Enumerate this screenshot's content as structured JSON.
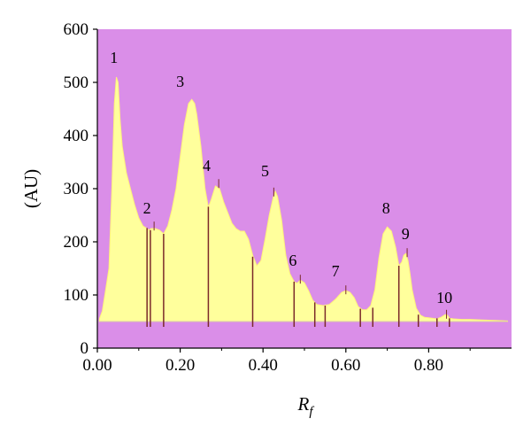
{
  "chart_data": {
    "type": "area",
    "title": "",
    "xlabel": "R",
    "xlabel_subscript": "f",
    "ylabel": "(AU)",
    "xlim": [
      0.0,
      1.0
    ],
    "ylim": [
      0,
      600
    ],
    "baseline": 50,
    "x_ticks": [
      0.0,
      0.2,
      0.4,
      0.6,
      0.8
    ],
    "x_tick_labels": [
      "0.00",
      "0.20",
      "0.40",
      "0.60",
      "0.80"
    ],
    "y_ticks": [
      0,
      100,
      200,
      300,
      400,
      500,
      600
    ],
    "y_tick_labels": [
      "0",
      "100",
      "200",
      "300",
      "400",
      "500",
      "600"
    ],
    "grid": false,
    "legend": "none",
    "colors": {
      "plot_background": "#da8ee8",
      "fill": "#ffff9c",
      "outline": "#fff27a",
      "drop_lines": "#7a2a2a",
      "axis": "#000000"
    },
    "profile": {
      "x": [
        0.005,
        0.012,
        0.02,
        0.028,
        0.035,
        0.041,
        0.046,
        0.05,
        0.055,
        0.06,
        0.07,
        0.08,
        0.09,
        0.1,
        0.11,
        0.12,
        0.125,
        0.13,
        0.14,
        0.15,
        0.16,
        0.17,
        0.18,
        0.19,
        0.2,
        0.21,
        0.22,
        0.228,
        0.235,
        0.24,
        0.25,
        0.26,
        0.268,
        0.275,
        0.285,
        0.295,
        0.305,
        0.315,
        0.325,
        0.335,
        0.345,
        0.355,
        0.365,
        0.375,
        0.385,
        0.395,
        0.405,
        0.415,
        0.425,
        0.43,
        0.435,
        0.445,
        0.455,
        0.465,
        0.475,
        0.482,
        0.49,
        0.5,
        0.51,
        0.52,
        0.53,
        0.545,
        0.56,
        0.575,
        0.59,
        0.6,
        0.61,
        0.62,
        0.63,
        0.64,
        0.65,
        0.66,
        0.67,
        0.68,
        0.69,
        0.7,
        0.71,
        0.72,
        0.728,
        0.735,
        0.74,
        0.745,
        0.75,
        0.755,
        0.76,
        0.77,
        0.78,
        0.79,
        0.8,
        0.81,
        0.82,
        0.83,
        0.84,
        0.845,
        0.85,
        0.86,
        0.88,
        0.9,
        0.93,
        0.96,
        0.99
      ],
      "y": [
        55,
        70,
        110,
        150,
        300,
        460,
        510,
        500,
        430,
        380,
        330,
        300,
        270,
        245,
        230,
        225,
        222,
        225,
        225,
        222,
        215,
        230,
        260,
        300,
        360,
        420,
        460,
        468,
        460,
        440,
        380,
        300,
        265,
        280,
        305,
        300,
        275,
        255,
        235,
        225,
        220,
        220,
        205,
        175,
        155,
        165,
        205,
        250,
        285,
        295,
        285,
        240,
        175,
        140,
        125,
        122,
        128,
        123,
        108,
        90,
        82,
        80,
        82,
        92,
        105,
        108,
        105,
        95,
        78,
        72,
        72,
        80,
        110,
        170,
        215,
        228,
        220,
        190,
        155,
        162,
        175,
        178,
        165,
        140,
        110,
        75,
        62,
        58,
        57,
        56,
        55,
        58,
        63,
        62,
        56,
        55,
        54,
        54,
        53,
        52,
        51
      ]
    },
    "drop_lines": [
      {
        "x": 0.12,
        "top": 226
      },
      {
        "x": 0.128,
        "top": 222
      },
      {
        "x": 0.16,
        "top": 215
      },
      {
        "x": 0.268,
        "top": 266
      },
      {
        "x": 0.375,
        "top": 172
      },
      {
        "x": 0.475,
        "top": 125
      },
      {
        "x": 0.525,
        "top": 86
      },
      {
        "x": 0.55,
        "top": 80
      },
      {
        "x": 0.635,
        "top": 74
      },
      {
        "x": 0.665,
        "top": 76
      },
      {
        "x": 0.728,
        "top": 155
      },
      {
        "x": 0.775,
        "top": 63
      },
      {
        "x": 0.82,
        "top": 56
      },
      {
        "x": 0.85,
        "top": 56
      }
    ],
    "peak_markers": [
      {
        "x": 0.137,
        "top": 238
      },
      {
        "x": 0.293,
        "top": 318
      },
      {
        "x": 0.426,
        "top": 302
      },
      {
        "x": 0.49,
        "top": 138
      },
      {
        "x": 0.6,
        "top": 118
      },
      {
        "x": 0.748,
        "top": 188
      },
      {
        "x": 0.843,
        "top": 72
      }
    ],
    "peak_labels": [
      {
        "label": "1",
        "x": 0.04,
        "y": 537
      },
      {
        "label": "2",
        "x": 0.12,
        "y": 253
      },
      {
        "label": "3",
        "x": 0.2,
        "y": 492
      },
      {
        "label": "4",
        "x": 0.264,
        "y": 333
      },
      {
        "label": "5",
        "x": 0.405,
        "y": 323
      },
      {
        "label": "6",
        "x": 0.472,
        "y": 155
      },
      {
        "label": "7",
        "x": 0.575,
        "y": 135
      },
      {
        "label": "8",
        "x": 0.697,
        "y": 253
      },
      {
        "label": "9",
        "x": 0.744,
        "y": 205
      },
      {
        "label": "10",
        "x": 0.838,
        "y": 85
      }
    ]
  }
}
